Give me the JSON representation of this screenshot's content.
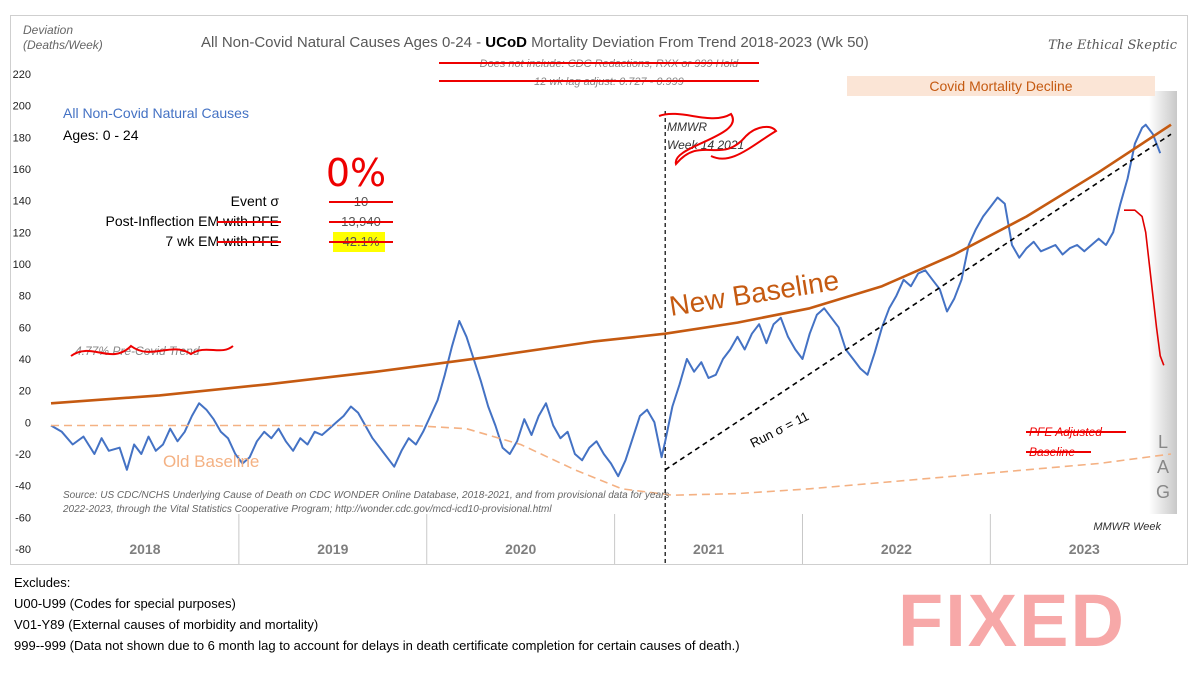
{
  "chart_data": {
    "type": "line",
    "title_prefix": "All Non-Covid Natural Causes Ages 0-24 - ",
    "title_bold": "UCoD",
    "title_suffix": " Mortality Deviation From Trend  2018-2023 (Wk 50)",
    "ylabel_line1": "Deviation",
    "ylabel_line2": "(Deaths/Week)",
    "xlabel": "MMWR Week",
    "brand": "The Ethical Skeptic",
    "ylim": [
      -80,
      220
    ],
    "yticks": [
      -80,
      -60,
      -40,
      -20,
      0,
      20,
      40,
      60,
      80,
      100,
      120,
      140,
      160,
      180,
      200,
      220
    ],
    "year_labels": [
      "2018",
      "2019",
      "2020",
      "2021",
      "2022",
      "2023"
    ],
    "notes_struck": [
      "Does not include: CDC Redactions, RXX or 999 Hold",
      "12 wk lag adjust: 0.727 - 0.999"
    ],
    "series_label": "All Non-Covid Natural Causes",
    "ages_label": "Ages: 0 - 24",
    "big_zero": "0%",
    "stats": [
      {
        "label": "Event σ",
        "struck_suffix": "",
        "value": "10"
      },
      {
        "label": "Post-Inflection EM ",
        "struck_suffix": "with PFE",
        "value": "13,940"
      },
      {
        "label": "7 wk EM ",
        "struck_suffix": "with PFE",
        "value": "42.1%"
      }
    ],
    "trend_note": "4.77% Pre-Covid Trend",
    "new_baseline_label": "New Baseline",
    "old_baseline_label": "Old Baseline",
    "pfe_label_line1": "PFE Adjusted",
    "pfe_label_line2": "Baseline",
    "run_label": "Run σ = 11",
    "covid_decline_label": "Covid Mortality Decline",
    "mmwr_note_line1": "MMWR",
    "mmwr_note_line2": "Week 14 2021",
    "lag_letters": [
      "L",
      "A",
      "G"
    ],
    "source_line1": "Source: US CDC/NCHS Underlying Cause of Death on CDC WONDER Online Database, 2018-2021, and from provisional data for years",
    "source_line2": "2022-2023, through the Vital Statistics Cooperative Program; http://wonder.cdc.gov/mcd-icd10-provisional.html",
    "inflection_week": 170,
    "weeks_total": 310,
    "series": [
      {
        "name": "All Non-Covid Natural Causes Deviation",
        "color": "#4472c4",
        "points": [
          [
            0,
            -2
          ],
          [
            3,
            -6
          ],
          [
            6,
            -14
          ],
          [
            9,
            -9
          ],
          [
            12,
            -20
          ],
          [
            14,
            -10
          ],
          [
            16,
            -18
          ],
          [
            19,
            -16
          ],
          [
            21,
            -30
          ],
          [
            23,
            -14
          ],
          [
            25,
            -20
          ],
          [
            27,
            -9
          ],
          [
            29,
            -18
          ],
          [
            31,
            -14
          ],
          [
            33,
            -4
          ],
          [
            35,
            -12
          ],
          [
            37,
            -6
          ],
          [
            39,
            4
          ],
          [
            41,
            12
          ],
          [
            43,
            8
          ],
          [
            45,
            2
          ],
          [
            47,
            -6
          ],
          [
            49,
            -10
          ],
          [
            51,
            -20
          ],
          [
            53,
            -26
          ],
          [
            55,
            -22
          ],
          [
            57,
            -12
          ],
          [
            59,
            -6
          ],
          [
            61,
            -10
          ],
          [
            63,
            -4
          ],
          [
            65,
            -12
          ],
          [
            67,
            -18
          ],
          [
            69,
            -10
          ],
          [
            71,
            -14
          ],
          [
            73,
            -6
          ],
          [
            75,
            -8
          ],
          [
            77,
            -4
          ],
          [
            79,
            0
          ],
          [
            81,
            4
          ],
          [
            83,
            10
          ],
          [
            85,
            6
          ],
          [
            87,
            -2
          ],
          [
            89,
            -10
          ],
          [
            91,
            -16
          ],
          [
            93,
            -22
          ],
          [
            95,
            -28
          ],
          [
            97,
            -18
          ],
          [
            99,
            -10
          ],
          [
            101,
            -14
          ],
          [
            103,
            -6
          ],
          [
            105,
            4
          ],
          [
            107,
            14
          ],
          [
            109,
            30
          ],
          [
            111,
            48
          ],
          [
            113,
            64
          ],
          [
            115,
            54
          ],
          [
            117,
            40
          ],
          [
            119,
            26
          ],
          [
            121,
            10
          ],
          [
            123,
            -2
          ],
          [
            125,
            -16
          ],
          [
            127,
            -20
          ],
          [
            129,
            -12
          ],
          [
            131,
            2
          ],
          [
            133,
            -8
          ],
          [
            135,
            4
          ],
          [
            137,
            12
          ],
          [
            139,
            -2
          ],
          [
            141,
            -10
          ],
          [
            143,
            -6
          ],
          [
            145,
            -20
          ],
          [
            147,
            -24
          ],
          [
            149,
            -16
          ],
          [
            151,
            -12
          ],
          [
            153,
            -20
          ],
          [
            155,
            -26
          ],
          [
            157,
            -34
          ],
          [
            159,
            -24
          ],
          [
            161,
            -10
          ],
          [
            163,
            4
          ],
          [
            165,
            8
          ],
          [
            167,
            0
          ],
          [
            169,
            -22
          ],
          [
            170,
            -12
          ],
          [
            172,
            10
          ],
          [
            174,
            24
          ],
          [
            176,
            40
          ],
          [
            178,
            32
          ],
          [
            180,
            38
          ],
          [
            182,
            28
          ],
          [
            184,
            30
          ],
          [
            186,
            40
          ],
          [
            188,
            46
          ],
          [
            190,
            54
          ],
          [
            192,
            46
          ],
          [
            194,
            56
          ],
          [
            196,
            62
          ],
          [
            198,
            50
          ],
          [
            200,
            62
          ],
          [
            202,
            66
          ],
          [
            204,
            54
          ],
          [
            206,
            46
          ],
          [
            208,
            40
          ],
          [
            210,
            56
          ],
          [
            212,
            68
          ],
          [
            214,
            72
          ],
          [
            216,
            66
          ],
          [
            218,
            60
          ],
          [
            220,
            46
          ],
          [
            222,
            40
          ],
          [
            224,
            34
          ],
          [
            226,
            30
          ],
          [
            228,
            44
          ],
          [
            230,
            60
          ],
          [
            232,
            72
          ],
          [
            234,
            80
          ],
          [
            236,
            90
          ],
          [
            238,
            86
          ],
          [
            240,
            94
          ],
          [
            242,
            96
          ],
          [
            244,
            90
          ],
          [
            246,
            84
          ],
          [
            248,
            70
          ],
          [
            250,
            78
          ],
          [
            252,
            90
          ],
          [
            254,
            112
          ],
          [
            256,
            122
          ],
          [
            258,
            130
          ],
          [
            260,
            136
          ],
          [
            262,
            142
          ],
          [
            264,
            138
          ],
          [
            266,
            112
          ],
          [
            268,
            104
          ],
          [
            270,
            110
          ],
          [
            272,
            114
          ],
          [
            274,
            108
          ],
          [
            276,
            110
          ],
          [
            278,
            112
          ],
          [
            280,
            106
          ],
          [
            282,
            110
          ],
          [
            284,
            112
          ],
          [
            286,
            108
          ],
          [
            288,
            112
          ],
          [
            290,
            116
          ],
          [
            292,
            112
          ],
          [
            294,
            120
          ],
          [
            296,
            138
          ],
          [
            298,
            154
          ],
          [
            300,
            176
          ],
          [
            302,
            186
          ],
          [
            303,
            188
          ],
          [
            305,
            182
          ],
          [
            307,
            170
          ]
        ]
      },
      {
        "name": "New Baseline",
        "color": "#c55a11",
        "points": [
          [
            0,
            12
          ],
          [
            30,
            17
          ],
          [
            60,
            24
          ],
          [
            90,
            32
          ],
          [
            120,
            41
          ],
          [
            150,
            51
          ],
          [
            170,
            56
          ],
          [
            190,
            63
          ],
          [
            210,
            72
          ],
          [
            230,
            86
          ],
          [
            250,
            106
          ],
          [
            270,
            130
          ],
          [
            290,
            158
          ],
          [
            310,
            188
          ]
        ]
      },
      {
        "name": "Old Baseline",
        "color": "#f4b183",
        "dashed": true,
        "points": [
          [
            0,
            -2
          ],
          [
            40,
            -2
          ],
          [
            80,
            -2
          ],
          [
            100,
            -2
          ],
          [
            115,
            -4
          ],
          [
            130,
            -14
          ],
          [
            145,
            -30
          ],
          [
            158,
            -42
          ],
          [
            172,
            -46
          ],
          [
            190,
            -45
          ],
          [
            210,
            -42
          ],
          [
            230,
            -38
          ],
          [
            250,
            -34
          ],
          [
            270,
            -30
          ],
          [
            290,
            -26
          ],
          [
            310,
            -20
          ]
        ]
      },
      {
        "name": "Run σ trend",
        "color": "#000000",
        "dashed": true,
        "points": [
          [
            170,
            -30
          ],
          [
            310,
            182
          ]
        ]
      },
      {
        "name": "PFE Adjusted projection",
        "color": "#e00000",
        "points": [
          [
            297,
            134
          ],
          [
            300,
            134
          ],
          [
            302,
            130
          ],
          [
            303,
            120
          ],
          [
            304,
            100
          ],
          [
            305,
            80
          ],
          [
            306,
            60
          ],
          [
            307,
            42
          ],
          [
            308,
            36
          ]
        ]
      }
    ]
  },
  "footnotes": [
    "Excludes:",
    "U00-U99 (Codes for special purposes)",
    "V01-Y89 (External causes of morbidity and mortality)",
    "999--999 (Data not shown due to 6 month lag to account for delays in death certificate completion for certain causes of death.)"
  ],
  "stamp": "FIXED"
}
